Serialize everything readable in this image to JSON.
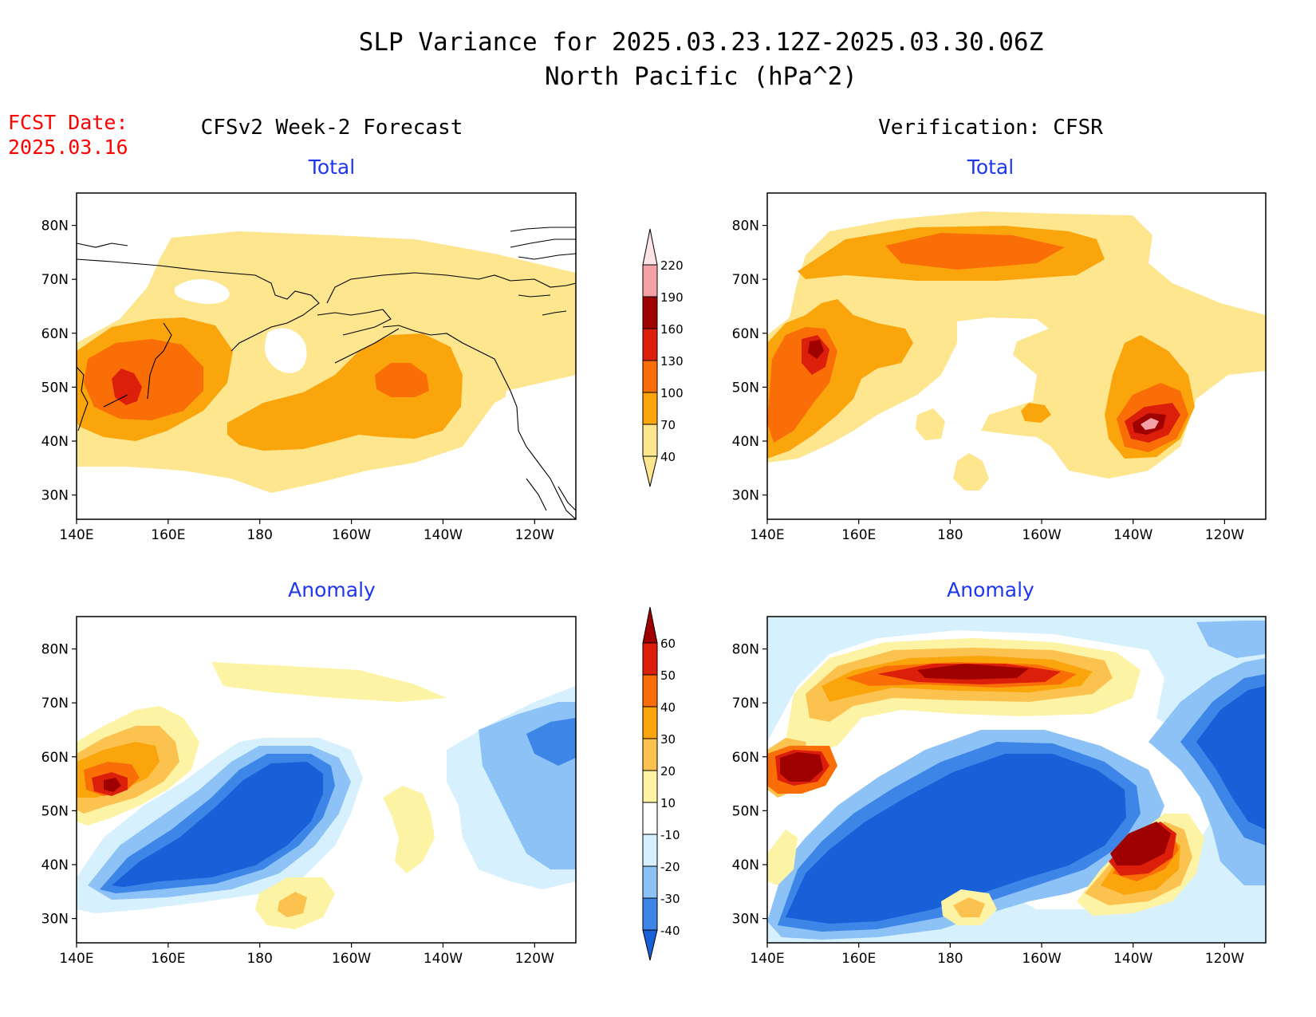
{
  "title": {
    "line1": "SLP Variance for 2025.03.23.12Z-2025.03.30.06Z",
    "line2": "North Pacific (hPa^2)"
  },
  "fcst": {
    "label": "FCST Date:",
    "date": "2025.03.16"
  },
  "columns": {
    "left": "CFSv2 Week-2 Forecast",
    "right": "Verification: CFSR"
  },
  "panels": [
    {
      "id": "fcst-total",
      "subtitle": "Total"
    },
    {
      "id": "verif-total",
      "subtitle": "Total"
    },
    {
      "id": "fcst-anomaly",
      "subtitle": "Anomaly"
    },
    {
      "id": "verif-anomaly",
      "subtitle": "Anomaly"
    }
  ],
  "axes": {
    "lat_labels": [
      "30N",
      "40N",
      "50N",
      "60N",
      "70N",
      "80N"
    ],
    "lon_labels": [
      "140E",
      "160E",
      "180",
      "160W",
      "140W",
      "120W"
    ]
  },
  "colorbars": {
    "total": {
      "labels": [
        "40",
        "70",
        "100",
        "130",
        "160",
        "190",
        "220"
      ],
      "colors": [
        "#fde68e",
        "#fba50c",
        "#fa6e07",
        "#dc1f0b",
        "#9f0000",
        "#f3a0a6",
        "#fde2e6"
      ]
    },
    "anomaly": {
      "labels": [
        "-40",
        "-30",
        "-20",
        "-10",
        "10",
        "20",
        "30",
        "40",
        "50",
        "60"
      ],
      "colors": [
        "#1760d8",
        "#3d86e8",
        "#8cc2f6",
        "#d6f0fd",
        "#ffffff",
        "#fdf3a4",
        "#fcc250",
        "#fba50c",
        "#fa6e07",
        "#dc1f0b",
        "#9f0000"
      ]
    }
  },
  "palette": {
    "title": "#000000",
    "fcst_date": "#ff0000",
    "subtitle": "#1f36f0",
    "coast": "#000000"
  }
}
